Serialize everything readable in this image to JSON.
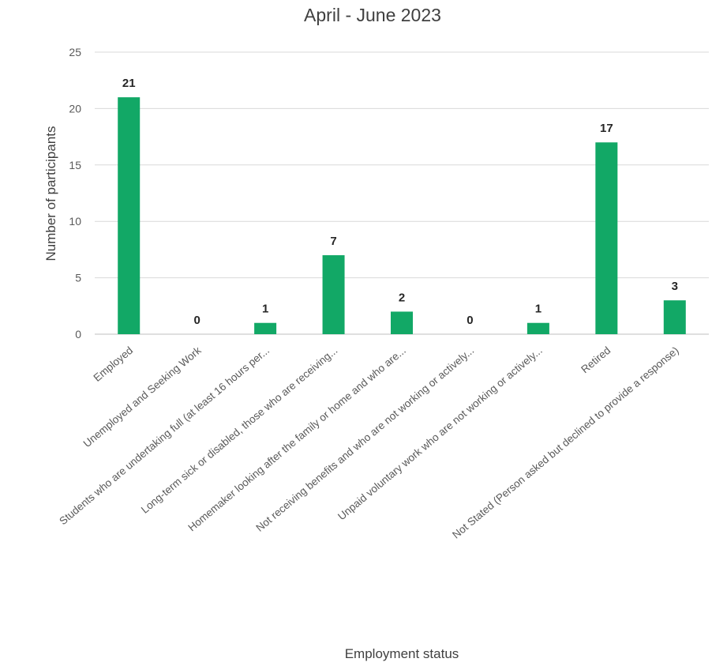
{
  "chart_data": {
    "type": "bar",
    "title": "April - June 2023",
    "xlabel": "Employment status",
    "ylabel": "Number of participants",
    "ylim": [
      0,
      25
    ],
    "yticks": [
      0,
      5,
      10,
      15,
      20,
      25
    ],
    "grid": true,
    "bar_color": "#12a866",
    "categories": [
      "Employed",
      "Unemployed and Seeking Work",
      "Students who are undertaking full (at least 16 hours per...",
      "Long-term sick or disabled, those who are receiving...",
      "Homemaker looking after the family or home and who are...",
      "Not receiving benefits and who are not working or actively...",
      "Unpaid voluntary work who are not working or actively...",
      "Retired",
      "Not Stated (Person asked but declined to provide a response)"
    ],
    "values": [
      21,
      0,
      1,
      7,
      2,
      0,
      1,
      17,
      3
    ]
  }
}
